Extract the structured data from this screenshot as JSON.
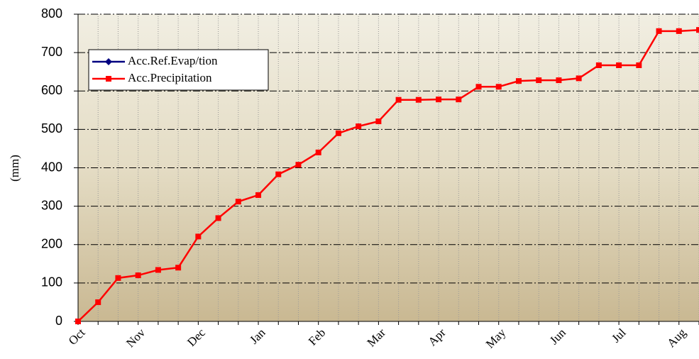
{
  "chart_data": {
    "type": "line",
    "ylabel": "(mm)",
    "categories": [
      "Oct",
      null,
      null,
      "Nov",
      null,
      null,
      "Dec",
      null,
      null,
      "Jan",
      null,
      null,
      "Feb",
      null,
      null,
      "Mar",
      null,
      null,
      "Apr",
      null,
      null,
      "May",
      null,
      null,
      "Jun",
      null,
      null,
      "Jul",
      null,
      null,
      "Aug",
      null
    ],
    "series": [
      {
        "name": "Acc.Ref.Evap/tion",
        "color": "#000080",
        "marker": "diamond",
        "values": [
          null,
          null,
          null,
          null,
          null,
          null,
          null,
          null,
          null,
          null,
          null,
          null,
          null,
          null,
          null,
          null,
          null,
          null,
          null,
          null,
          null,
          null,
          null,
          null,
          null,
          null,
          null,
          null,
          null,
          null,
          null,
          null
        ]
      },
      {
        "name": "Acc.Precipitation",
        "color": "#ff0000",
        "marker": "square",
        "values": [
          0,
          50,
          113,
          120,
          134,
          140,
          221,
          269,
          312,
          329,
          383,
          408,
          440,
          490,
          508,
          521,
          577,
          577,
          578,
          578,
          611,
          611,
          626,
          628,
          628,
          633,
          667,
          667,
          667,
          756,
          756,
          759
        ]
      }
    ],
    "ylim": [
      0,
      800
    ],
    "yticks": [
      0,
      100,
      200,
      300,
      400,
      500,
      600,
      700,
      800
    ],
    "grid": true,
    "legend": "upper left"
  }
}
